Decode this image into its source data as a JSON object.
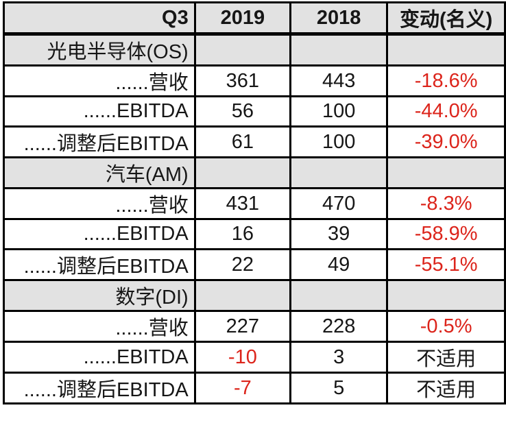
{
  "colors": {
    "negative": "#dc241b",
    "header_bg": "#e2e2e2",
    "row_bg": "#ffffff",
    "border": "#000000",
    "text": "#161616"
  },
  "chart_data": {
    "type": "table",
    "columns": [
      "Q3",
      "2019",
      "2018",
      "变动(名义)"
    ],
    "rows": [
      {
        "kind": "section",
        "label": "光电半导体(OS)"
      },
      {
        "kind": "data",
        "label": "......营收",
        "values": [
          {
            "text": "361"
          },
          {
            "text": "443"
          },
          {
            "text": "-18.6%",
            "negative": true
          }
        ]
      },
      {
        "kind": "data",
        "label": "......EBITDA",
        "values": [
          {
            "text": "56"
          },
          {
            "text": "100"
          },
          {
            "text": "-44.0%",
            "negative": true
          }
        ]
      },
      {
        "kind": "data",
        "label": "......调整后EBITDA",
        "values": [
          {
            "text": "61"
          },
          {
            "text": "100"
          },
          {
            "text": "-39.0%",
            "negative": true
          }
        ]
      },
      {
        "kind": "section",
        "label": "汽车(AM)"
      },
      {
        "kind": "data",
        "label": "......营收",
        "values": [
          {
            "text": "431"
          },
          {
            "text": "470"
          },
          {
            "text": "-8.3%",
            "negative": true
          }
        ]
      },
      {
        "kind": "data",
        "label": "......EBITDA",
        "values": [
          {
            "text": "16"
          },
          {
            "text": "39"
          },
          {
            "text": "-58.9%",
            "negative": true
          }
        ]
      },
      {
        "kind": "data",
        "label": "......调整后EBITDA",
        "values": [
          {
            "text": "22"
          },
          {
            "text": "49"
          },
          {
            "text": "-55.1%",
            "negative": true
          }
        ]
      },
      {
        "kind": "section",
        "label": "数字(DI)"
      },
      {
        "kind": "data",
        "label": "......营收",
        "values": [
          {
            "text": "227"
          },
          {
            "text": "228"
          },
          {
            "text": "-0.5%",
            "negative": true
          }
        ]
      },
      {
        "kind": "data",
        "label": "......EBITDA",
        "values": [
          {
            "text": "-10",
            "negative": true
          },
          {
            "text": "3"
          },
          {
            "text": "不适用"
          }
        ]
      },
      {
        "kind": "data",
        "label": "......调整后EBITDA",
        "values": [
          {
            "text": "-7",
            "negative": true
          },
          {
            "text": "5"
          },
          {
            "text": "不适用"
          }
        ]
      }
    ]
  }
}
